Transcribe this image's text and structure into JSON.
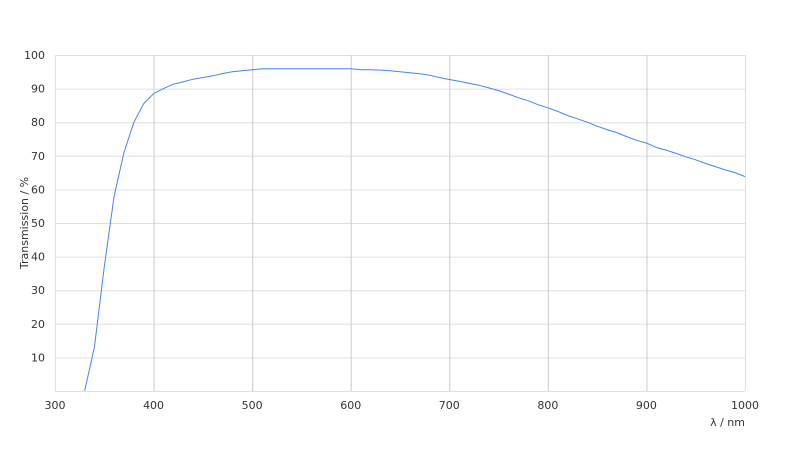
{
  "chart_data": {
    "type": "line",
    "title": "",
    "xlabel": "λ / nm",
    "ylabel": "Transmission / %",
    "xlim": [
      300,
      1000
    ],
    "ylim": [
      0,
      100
    ],
    "xticks": [
      300,
      400,
      500,
      600,
      700,
      800,
      900,
      1000
    ],
    "yticks": [
      10,
      20,
      30,
      40,
      50,
      60,
      70,
      80,
      90,
      100
    ],
    "grid": true,
    "legend": "none",
    "colors": {
      "line": "#4285f4",
      "vgrid": "#cccccc",
      "hgrid": "#e0e0e0"
    },
    "series": [
      {
        "x": [
          330,
          340,
          350,
          360,
          370,
          380,
          390,
          400,
          410,
          420,
          430,
          440,
          450,
          460,
          470,
          480,
          490,
          500,
          510,
          520,
          540,
          560,
          580,
          600,
          610,
          620,
          630,
          640,
          650,
          660,
          670,
          680,
          690,
          700,
          710,
          720,
          730,
          740,
          750,
          760,
          770,
          780,
          790,
          800,
          810,
          820,
          830,
          840,
          850,
          860,
          870,
          880,
          890,
          900,
          910,
          920,
          930,
          940,
          950,
          960,
          970,
          980,
          990,
          1000
        ],
        "y": [
          0,
          13,
          37,
          58,
          71,
          80,
          85.5,
          88.5,
          90,
          91.3,
          92,
          92.8,
          93.3,
          93.8,
          94.5,
          95,
          95.3,
          95.6,
          95.9,
          95.9,
          95.9,
          95.9,
          95.9,
          95.9,
          95.6,
          95.6,
          95.5,
          95.3,
          95,
          94.7,
          94.4,
          94,
          93.3,
          92.7,
          92.2,
          91.6,
          91,
          90.2,
          89.4,
          88.4,
          87.3,
          86.4,
          85.2,
          84.3,
          83.2,
          82,
          81,
          80,
          78.8,
          77.8,
          76.9,
          75.7,
          74.6,
          73.8,
          72.5,
          71.7,
          70.7,
          69.7,
          68.8,
          67.7,
          66.8,
          65.8,
          65,
          63.8
        ]
      }
    ]
  }
}
